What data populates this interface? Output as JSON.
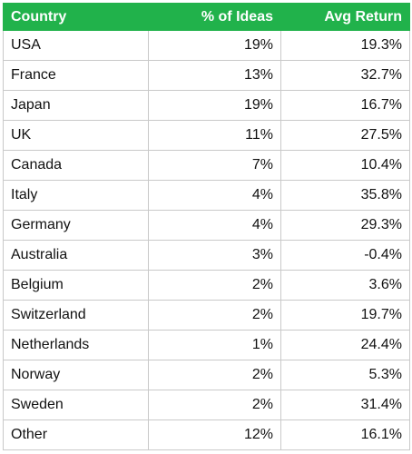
{
  "table": {
    "headers": [
      "Country",
      "% of Ideas",
      "Avg Return"
    ],
    "rows": [
      [
        "USA",
        "19%",
        "19.3%"
      ],
      [
        "France",
        "13%",
        "32.7%"
      ],
      [
        "Japan",
        "19%",
        "16.7%"
      ],
      [
        "UK",
        "11%",
        "27.5%"
      ],
      [
        "Canada",
        "7%",
        "10.4%"
      ],
      [
        "Italy",
        "4%",
        "35.8%"
      ],
      [
        "Germany",
        "4%",
        "29.3%"
      ],
      [
        "Australia",
        "3%",
        "-0.4%"
      ],
      [
        "Belgium",
        "2%",
        "3.6%"
      ],
      [
        "Switzerland",
        "2%",
        "19.7%"
      ],
      [
        "Netherlands",
        "1%",
        "24.4%"
      ],
      [
        "Norway",
        "2%",
        "5.3%"
      ],
      [
        "Sweden",
        "2%",
        "31.4%"
      ],
      [
        "Other",
        "12%",
        "16.1%"
      ]
    ]
  },
  "colors": {
    "header_bg": "#21b24b",
    "header_text": "#ffffff",
    "grid": "#c9c9c9"
  }
}
